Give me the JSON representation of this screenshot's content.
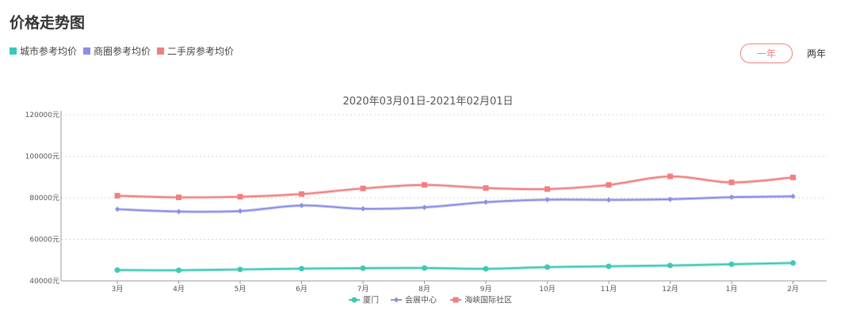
{
  "title": "价格走势图",
  "legend_top": [
    {
      "label": "城市参考均价",
      "color": "#3cc9b5"
    },
    {
      "label": "商圈参考均价",
      "color": "#8a8ee6"
    },
    {
      "label": "二手房参考均价",
      "color": "#f08080"
    }
  ],
  "range_toggle": {
    "one_year": "一年",
    "two_years": "两年",
    "selected": "一年"
  },
  "chart_data": {
    "type": "line",
    "subtitle": "2020年03月01日-2021年02月01日",
    "categories": [
      "3月",
      "4月",
      "5月",
      "6月",
      "7月",
      "8月",
      "9月",
      "10月",
      "11月",
      "12月",
      "1月",
      "2月"
    ],
    "y_ticks": [
      "40000元",
      "60000元",
      "80000元",
      "100000元",
      "120000元"
    ],
    "ylim": [
      40000,
      120000
    ],
    "grid": true,
    "legend_position": "bottom",
    "series": [
      {
        "name": "厦门",
        "color": "#3cc9b5",
        "marker": "circle",
        "values": [
          45200,
          45100,
          45500,
          45900,
          46100,
          46200,
          45800,
          46600,
          47000,
          47400,
          48000,
          48600
        ]
      },
      {
        "name": "会展中心",
        "color": "#8a8ee6",
        "marker": "diamond",
        "values": [
          74500,
          73400,
          73600,
          76300,
          74700,
          75400,
          77900,
          79100,
          79000,
          79300,
          80300,
          80700
        ]
      },
      {
        "name": "海峡国际社区",
        "color": "#f08080",
        "marker": "square",
        "values": [
          81000,
          80200,
          80500,
          81800,
          84500,
          86200,
          84700,
          84200,
          86200,
          90300,
          87400,
          89800
        ]
      }
    ]
  }
}
